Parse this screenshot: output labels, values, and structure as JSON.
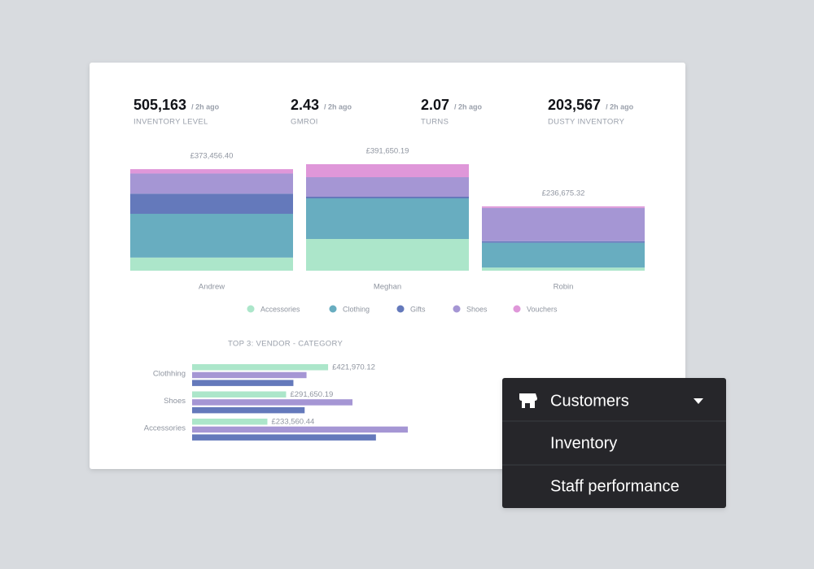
{
  "kpis": [
    {
      "value": "505,163",
      "age": "/ 2h ago",
      "label": "INVENTORY LEVEL"
    },
    {
      "value": "2.43",
      "age": "/ 2h ago",
      "label": "GMROI"
    },
    {
      "value": "2.07",
      "age": "/ 2h ago",
      "label": "TURNS"
    },
    {
      "value": "203,567",
      "age": "/ 2h ago",
      "label": "DUSTY INVENTORY"
    }
  ],
  "chart_data": [
    {
      "type": "stacked_bar",
      "categories": [
        "Andrew",
        "Meghan",
        "Robin"
      ],
      "series": [
        {
          "name": "Accessories",
          "color": "#ace6ca",
          "values": [
            48290,
            116600,
            11400
          ]
        },
        {
          "name": "Clothing",
          "color": "#68adc0",
          "values": [
            160970,
            149490,
            91250
          ]
        },
        {
          "name": "Gifts",
          "color": "#6479bb",
          "values": [
            74050,
            5980,
            5700
          ]
        },
        {
          "name": "Shoes",
          "color": "#a596d4",
          "values": [
            74050,
            71750,
            122620
          ]
        },
        {
          "name": "Vouchers",
          "color": "#df97d9",
          "values": [
            16096.4,
            47830.19,
            5705.32
          ]
        }
      ],
      "totals": [
        373456.4,
        391650.19,
        236675.32
      ],
      "total_labels": [
        "£373,456.40",
        "£391,650.19",
        "£236,675.32"
      ]
    },
    {
      "type": "hbar",
      "title": "TOP 3: VENDOR - CATEGORY",
      "categories": [
        "Clothhing",
        "Shoes",
        "Accessories"
      ],
      "series": [
        {
          "color": "#ace6ca",
          "values": [
            421970.12,
            291650.19,
            233560.44
          ],
          "value_labels": [
            "£421,970.12",
            "£291,650.19",
            "£233,560.44"
          ]
        },
        {
          "color": "#a596d4",
          "values": [
            355000,
            497600,
            669300
          ]
        },
        {
          "color": "#6479bb",
          "values": [
            314300,
            349200,
            570400
          ]
        }
      ]
    }
  ],
  "menu": {
    "items": [
      "Customers",
      "Inventory",
      "Staff performance"
    ]
  }
}
